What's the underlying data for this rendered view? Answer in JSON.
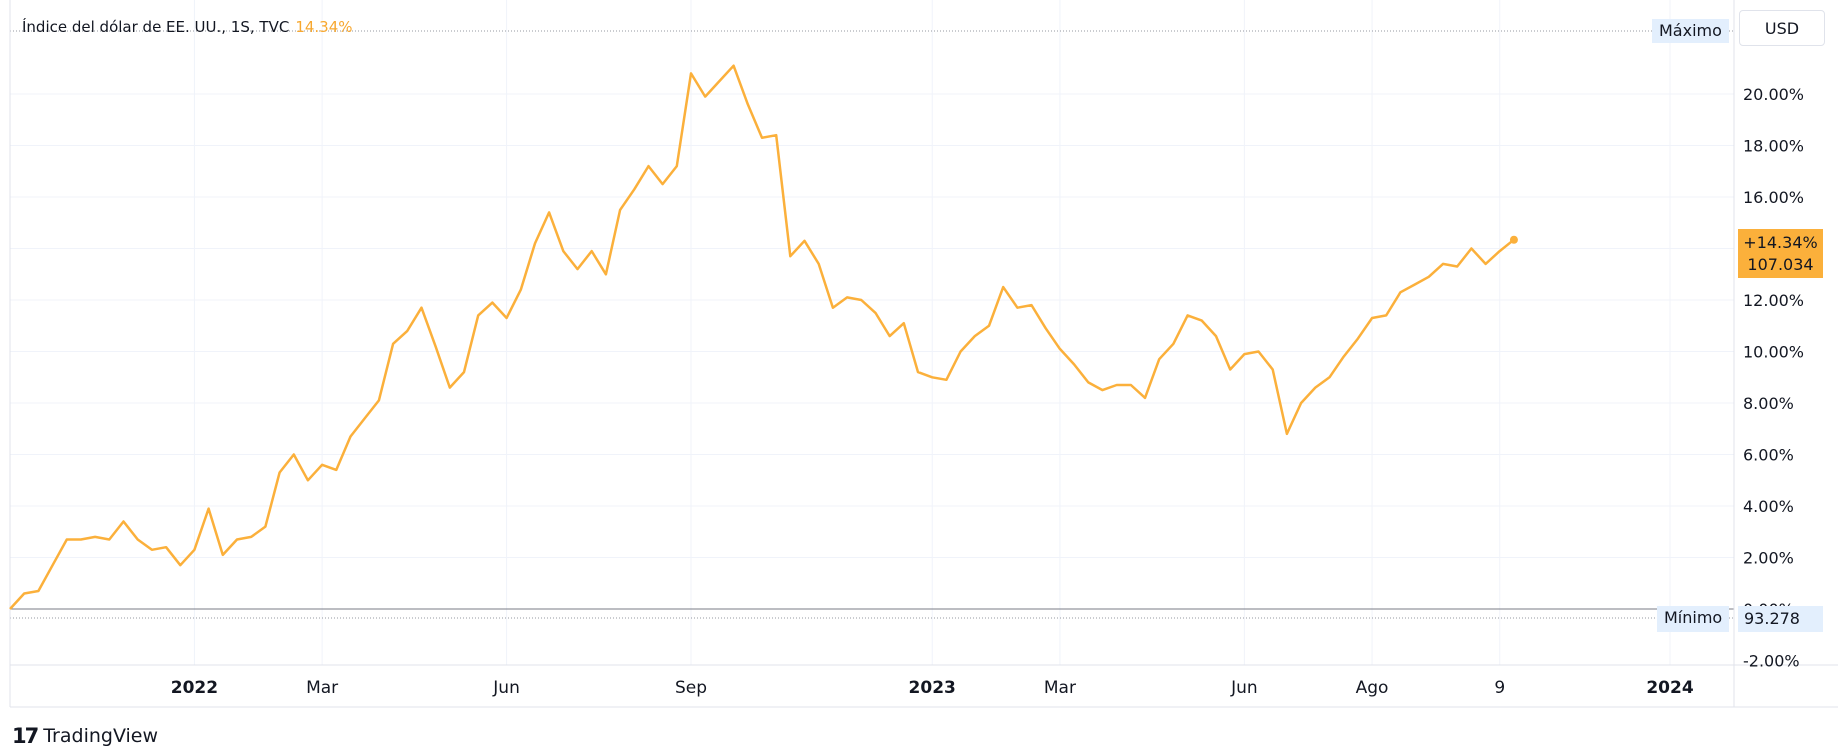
{
  "header": {
    "symbol_label": "Índice del dólar de EE. UU., 1S, TVC",
    "last_change": "14.34%"
  },
  "scale": {
    "currency_button": "USD",
    "max_label": "Máximo",
    "min_label": "Mínimo",
    "min_value": "93.278",
    "last_pct": "+14.34%",
    "last_price": "107.034"
  },
  "branding": {
    "name": "TradingView",
    "logo_text": "17"
  },
  "colors": {
    "line": "#fbb03b",
    "grid": "#f0f3fa",
    "axis": "#d1d4dc",
    "tag_bg": "#e3effd"
  },
  "chart_data": {
    "type": "line",
    "title": "Índice del dólar de EE. UU., 1S, TVC",
    "xlabel": "",
    "ylabel": "",
    "ylim": [
      -2,
      21.5
    ],
    "y_ticks": [
      "-2.00%",
      "0.00%",
      "2.00%",
      "4.00%",
      "6.00%",
      "8.00%",
      "10.00%",
      "12.00%",
      "14.00%",
      "16.00%",
      "18.00%",
      "20.00%"
    ],
    "y_tick_values": [
      -2,
      0,
      2,
      4,
      6,
      8,
      10,
      12,
      14,
      16,
      18,
      20
    ],
    "x_ticks": [
      {
        "label": "2022",
        "i": 13,
        "bold": true
      },
      {
        "label": "Mar",
        "i": 22,
        "bold": false
      },
      {
        "label": "Jun",
        "i": 35,
        "bold": false
      },
      {
        "label": "Sep",
        "i": 48,
        "bold": false
      },
      {
        "label": "2023",
        "i": 65,
        "bold": true
      },
      {
        "label": "Mar",
        "i": 74,
        "bold": false
      },
      {
        "label": "Jun",
        "i": 87,
        "bold": false
      },
      {
        "label": "Ago",
        "i": 96,
        "bold": false
      },
      {
        "label": "9",
        "i": 105,
        "bold": false
      },
      {
        "label": "2024",
        "i": 117,
        "bold": true
      }
    ],
    "x_count": 118,
    "grid": true,
    "series": [
      {
        "values": [
          0.0,
          0.6,
          0.7,
          1.7,
          2.7,
          2.7,
          2.8,
          2.7,
          3.4,
          2.7,
          2.3,
          2.4,
          1.7,
          2.3,
          3.9,
          2.1,
          2.7,
          2.8,
          3.2,
          5.3,
          6.0,
          5.0,
          5.6,
          5.4,
          6.7,
          7.4,
          8.1,
          10.3,
          10.8,
          11.7,
          10.2,
          8.6,
          9.2,
          11.4,
          11.9,
          11.3,
          12.4,
          14.2,
          15.4,
          13.9,
          13.2,
          13.9,
          13.0,
          15.5,
          16.3,
          17.2,
          16.5,
          17.2,
          20.8,
          19.9,
          20.5,
          21.1,
          19.6,
          18.3,
          18.4,
          13.7,
          14.3,
          13.4,
          11.7,
          12.1,
          12.0,
          11.5,
          10.6,
          11.1,
          9.2,
          9.0,
          8.9,
          10.0,
          10.6,
          11.0,
          12.5,
          11.7,
          11.8,
          10.9,
          10.1,
          9.5,
          8.8,
          8.5,
          8.7,
          8.7,
          8.2,
          9.7,
          10.3,
          11.4,
          11.2,
          10.6,
          9.3,
          9.9,
          10.0,
          9.3,
          6.8,
          8.0,
          8.6,
          9.0,
          9.8,
          10.5,
          11.3,
          11.4,
          12.3,
          12.6,
          12.9,
          13.4,
          13.3,
          14.0,
          13.4,
          13.9,
          14.34
        ]
      }
    ]
  }
}
